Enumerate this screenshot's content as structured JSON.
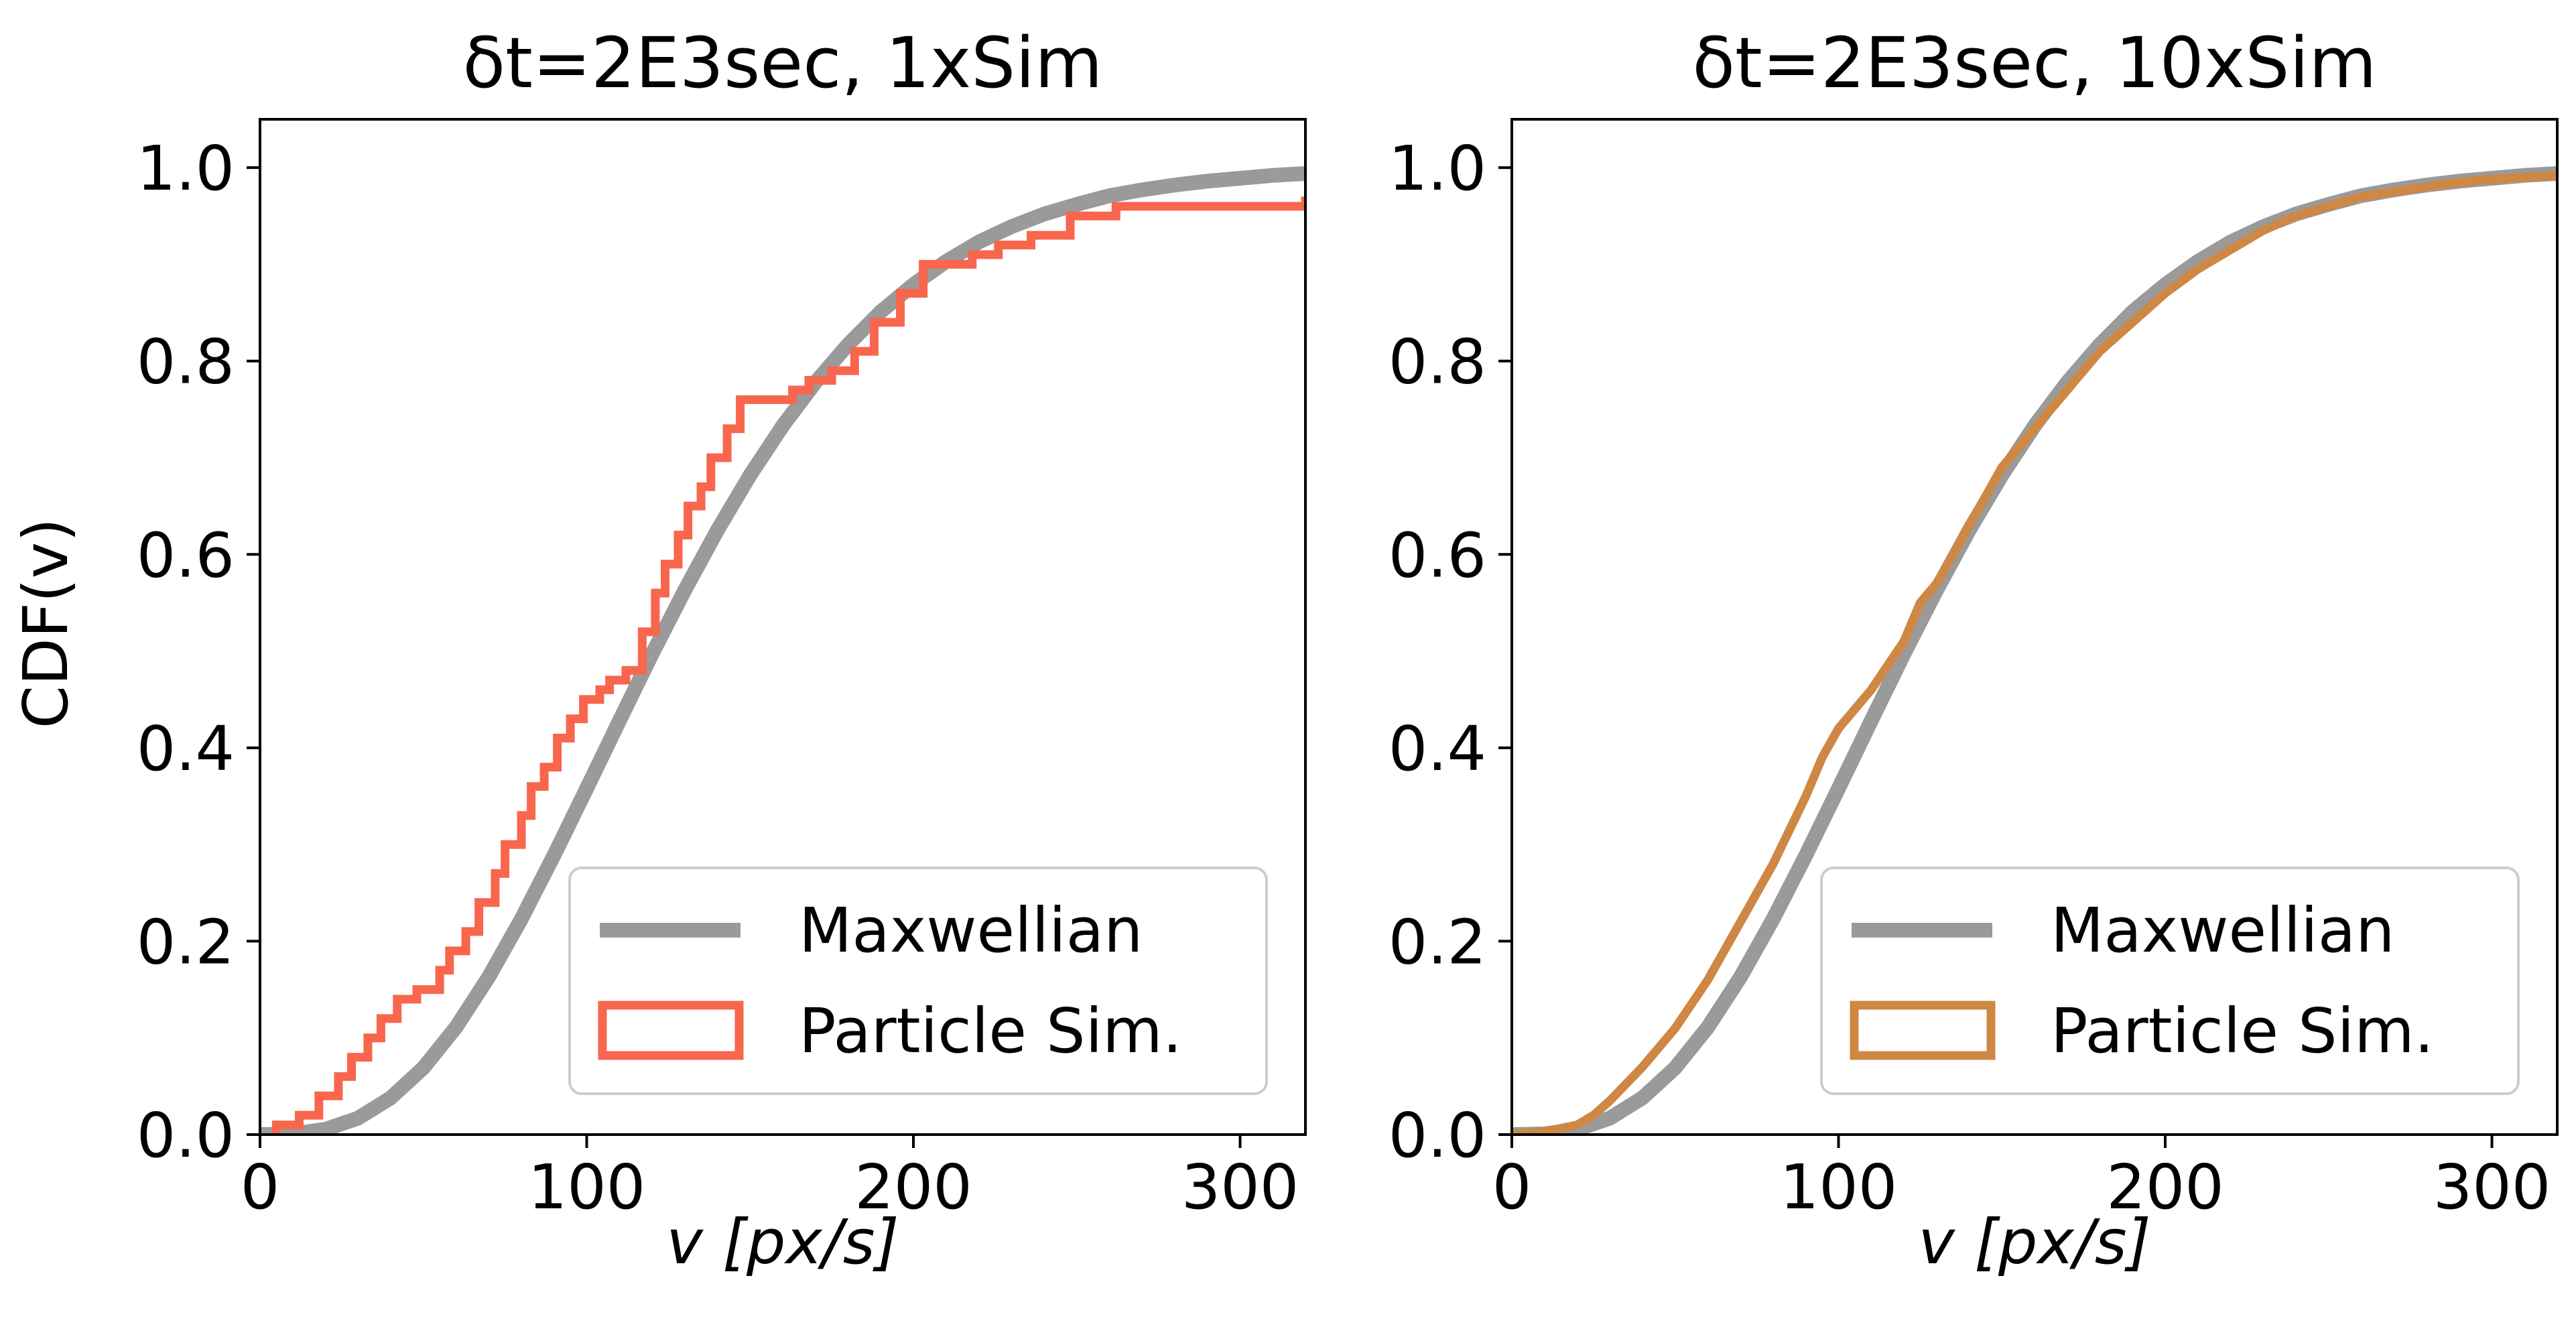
{
  "colors": {
    "maxwellian": "#9a9a9a",
    "sim_1x": "#f8664d",
    "sim_10x": "#cf8744"
  },
  "chart_data": [
    {
      "type": "line",
      "title": "δt=2E3sec, 1xSim",
      "xlabel": "v [px/s]",
      "ylabel": "CDF(v)",
      "xlim": [
        0,
        320
      ],
      "ylim": [
        0,
        1.05
      ],
      "xticks": [
        "0",
        "100",
        "200",
        "300"
      ],
      "yticks": [
        "0.0",
        "0.2",
        "0.4",
        "0.6",
        "0.8",
        "1.0"
      ],
      "legend_position": "lower-right",
      "series": [
        {
          "name": "Maxwellian",
          "kind": "line",
          "color": "#9a9a9a",
          "x": [
            0,
            10,
            20,
            30,
            40,
            50,
            60,
            70,
            80,
            90,
            100,
            110,
            120,
            130,
            140,
            150,
            160,
            170,
            180,
            190,
            200,
            210,
            220,
            230,
            240,
            250,
            260,
            270,
            280,
            290,
            300,
            310,
            320
          ],
          "y": [
            0.0,
            0.0007,
            0.0054,
            0.017,
            0.038,
            0.069,
            0.111,
            0.163,
            0.223,
            0.289,
            0.358,
            0.428,
            0.497,
            0.563,
            0.625,
            0.682,
            0.733,
            0.778,
            0.817,
            0.851,
            0.879,
            0.903,
            0.923,
            0.939,
            0.952,
            0.962,
            0.971,
            0.977,
            0.982,
            0.986,
            0.989,
            0.992,
            0.994
          ]
        },
        {
          "name": "Particle Sim.",
          "kind": "step",
          "color": "#f8664d",
          "x": [
            5,
            12,
            18,
            24,
            28,
            33,
            37,
            42,
            48,
            55,
            58,
            63,
            67,
            72,
            75,
            80,
            83,
            87,
            91,
            95,
            99,
            104,
            107,
            112,
            117,
            121,
            124,
            128,
            131,
            135,
            138,
            143,
            147,
            152,
            158,
            163,
            168,
            175,
            182,
            188,
            196,
            203,
            210,
            218,
            226,
            236,
            248,
            262,
            280,
            300,
            320
          ],
          "y": [
            0.01,
            0.02,
            0.04,
            0.06,
            0.08,
            0.1,
            0.12,
            0.14,
            0.15,
            0.17,
            0.19,
            0.21,
            0.24,
            0.27,
            0.3,
            0.33,
            0.36,
            0.38,
            0.41,
            0.43,
            0.45,
            0.46,
            0.47,
            0.48,
            0.52,
            0.56,
            0.59,
            0.62,
            0.65,
            0.67,
            0.7,
            0.73,
            0.76,
            0.76,
            0.76,
            0.77,
            0.78,
            0.79,
            0.81,
            0.84,
            0.87,
            0.9,
            0.9,
            0.91,
            0.92,
            0.93,
            0.95,
            0.96,
            0.96,
            0.96,
            0.97
          ]
        }
      ]
    },
    {
      "type": "line",
      "title": "δt=2E3sec, 10xSim",
      "xlabel": "v [px/s]",
      "ylabel": "",
      "xlim": [
        0,
        320
      ],
      "ylim": [
        0,
        1.05
      ],
      "xticks": [
        "0",
        "100",
        "200",
        "300"
      ],
      "yticks": [
        "0.0",
        "0.2",
        "0.4",
        "0.6",
        "0.8",
        "1.0"
      ],
      "legend_position": "lower-right",
      "series": [
        {
          "name": "Maxwellian",
          "kind": "line",
          "color": "#9a9a9a",
          "x": [
            0,
            10,
            20,
            30,
            40,
            50,
            60,
            70,
            80,
            90,
            100,
            110,
            120,
            130,
            140,
            150,
            160,
            170,
            180,
            190,
            200,
            210,
            220,
            230,
            240,
            250,
            260,
            270,
            280,
            290,
            300,
            310,
            320
          ],
          "y": [
            0.0,
            0.0007,
            0.0054,
            0.017,
            0.038,
            0.069,
            0.111,
            0.163,
            0.223,
            0.289,
            0.358,
            0.428,
            0.497,
            0.563,
            0.625,
            0.682,
            0.733,
            0.778,
            0.817,
            0.851,
            0.879,
            0.903,
            0.923,
            0.939,
            0.952,
            0.962,
            0.971,
            0.977,
            0.982,
            0.986,
            0.989,
            0.992,
            0.994
          ]
        },
        {
          "name": "Particle Sim.",
          "kind": "line",
          "color": "#cf8744",
          "x": [
            0,
            10,
            20,
            25,
            30,
            40,
            50,
            60,
            70,
            80,
            90,
            95,
            100,
            110,
            120,
            125,
            130,
            140,
            150,
            160,
            170,
            180,
            190,
            200,
            210,
            220,
            230,
            240,
            250,
            260,
            270,
            280,
            290,
            300,
            310,
            320
          ],
          "y": [
            0.0,
            0.003,
            0.01,
            0.02,
            0.035,
            0.07,
            0.11,
            0.16,
            0.22,
            0.28,
            0.35,
            0.39,
            0.42,
            0.46,
            0.51,
            0.55,
            0.57,
            0.63,
            0.69,
            0.73,
            0.77,
            0.81,
            0.84,
            0.87,
            0.895,
            0.915,
            0.935,
            0.95,
            0.96,
            0.97,
            0.975,
            0.98,
            0.985,
            0.988,
            0.99,
            0.992
          ]
        }
      ]
    }
  ]
}
